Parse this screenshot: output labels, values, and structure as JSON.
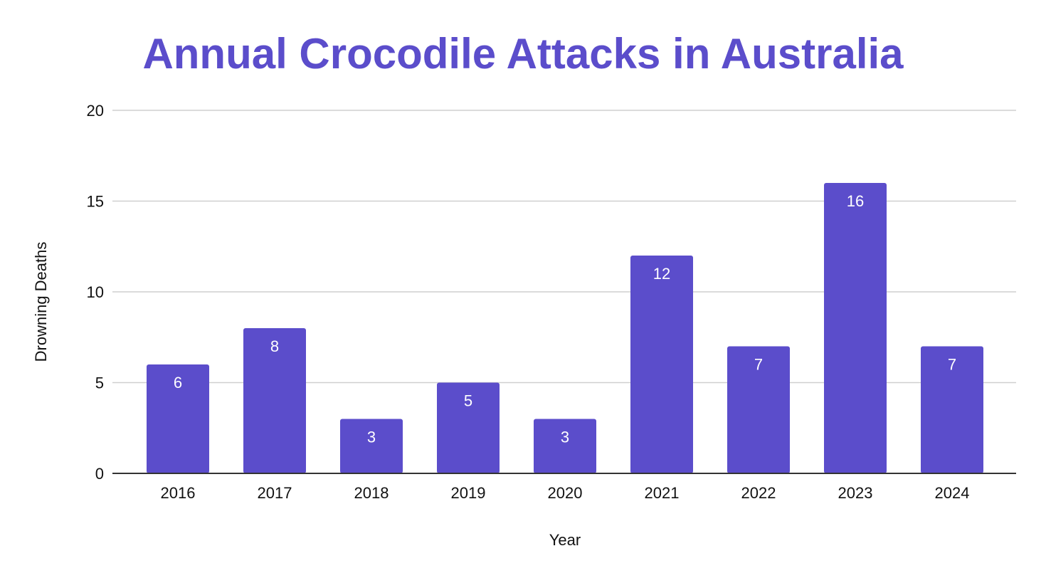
{
  "chart_data": {
    "type": "bar",
    "title": "Annual Crocodile Attacks in Australia",
    "xlabel": "Year",
    "ylabel": "Drowning Deaths",
    "categories": [
      "2016",
      "2017",
      "2018",
      "2019",
      "2020",
      "2021",
      "2022",
      "2023",
      "2024"
    ],
    "values": [
      6,
      8,
      3,
      5,
      3,
      12,
      7,
      16,
      7
    ],
    "ylim": [
      0,
      20
    ],
    "yticks": [
      0,
      5,
      10,
      15,
      20
    ],
    "grid": true,
    "data_labels": true,
    "legend": "none",
    "colors": {
      "bar": "#5b4dcb",
      "title": "#5b4dcb",
      "bar_label": "#ffffff"
    }
  }
}
